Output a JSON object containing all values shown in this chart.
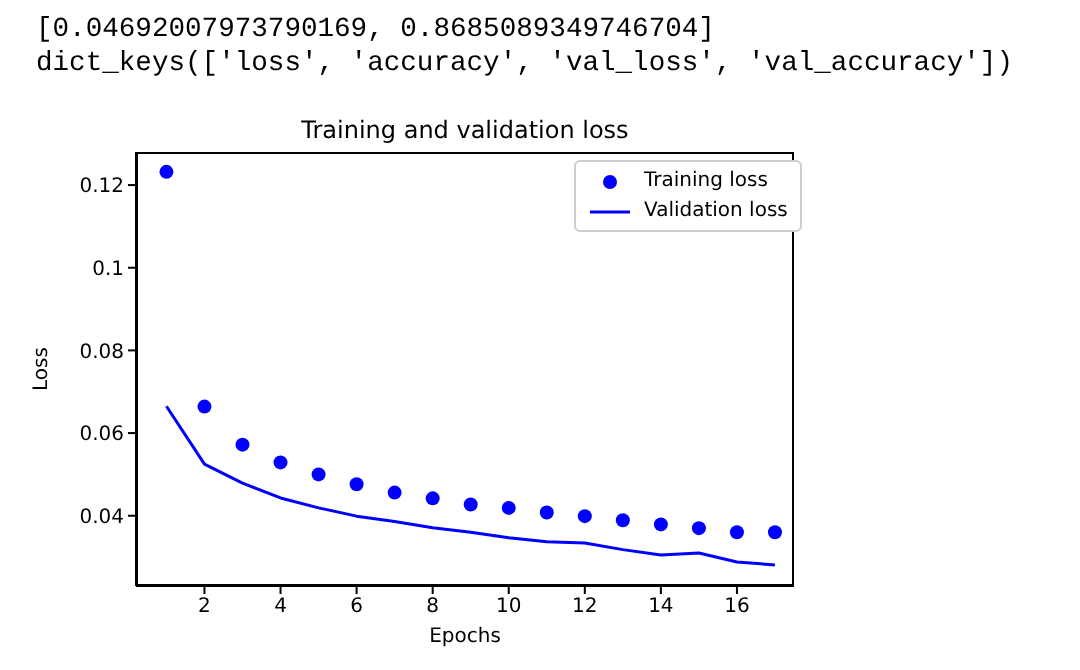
{
  "chart_data": {
    "type": "scatter",
    "title": "Training and validation loss",
    "xlabel": "Epochs",
    "ylabel": "Loss",
    "annotations": [
      "[0.04692007973790169, 0.8685089349746704]",
      "dict_keys(['loss', 'accuracy', 'val_loss', 'val_accuracy'])"
    ],
    "x": [
      1,
      2,
      3,
      4,
      5,
      6,
      7,
      8,
      9,
      10,
      11,
      12,
      13,
      14,
      15,
      16,
      17
    ],
    "series": [
      {
        "name": "Training loss",
        "marker": "circle",
        "color": "#0000ff",
        "values": [
          0.1232,
          0.0664,
          0.0572,
          0.0529,
          0.05,
          0.0476,
          0.0456,
          0.0442,
          0.0427,
          0.0419,
          0.0408,
          0.0399,
          0.0389,
          0.0379,
          0.037,
          0.036,
          0.036
        ]
      },
      {
        "name": "Validation loss",
        "type": "line",
        "marker": "none",
        "line_style": "solid",
        "color": "#0000ff",
        "values": [
          0.0665,
          0.0525,
          0.0479,
          0.0443,
          0.0419,
          0.0399,
          0.0386,
          0.0371,
          0.036,
          0.0347,
          0.0337,
          0.0334,
          0.0318,
          0.0305,
          0.031,
          0.0288,
          0.0281
        ]
      }
    ],
    "xlim": [
      0.2,
      17.5
    ],
    "ylim": [
      0.023,
      0.128
    ],
    "xticks": [
      2,
      4,
      6,
      8,
      10,
      12,
      14,
      16
    ],
    "yticks": [
      0.04,
      0.06,
      0.08,
      0.1,
      0.12
    ],
    "grid": false,
    "legend": "top right"
  }
}
